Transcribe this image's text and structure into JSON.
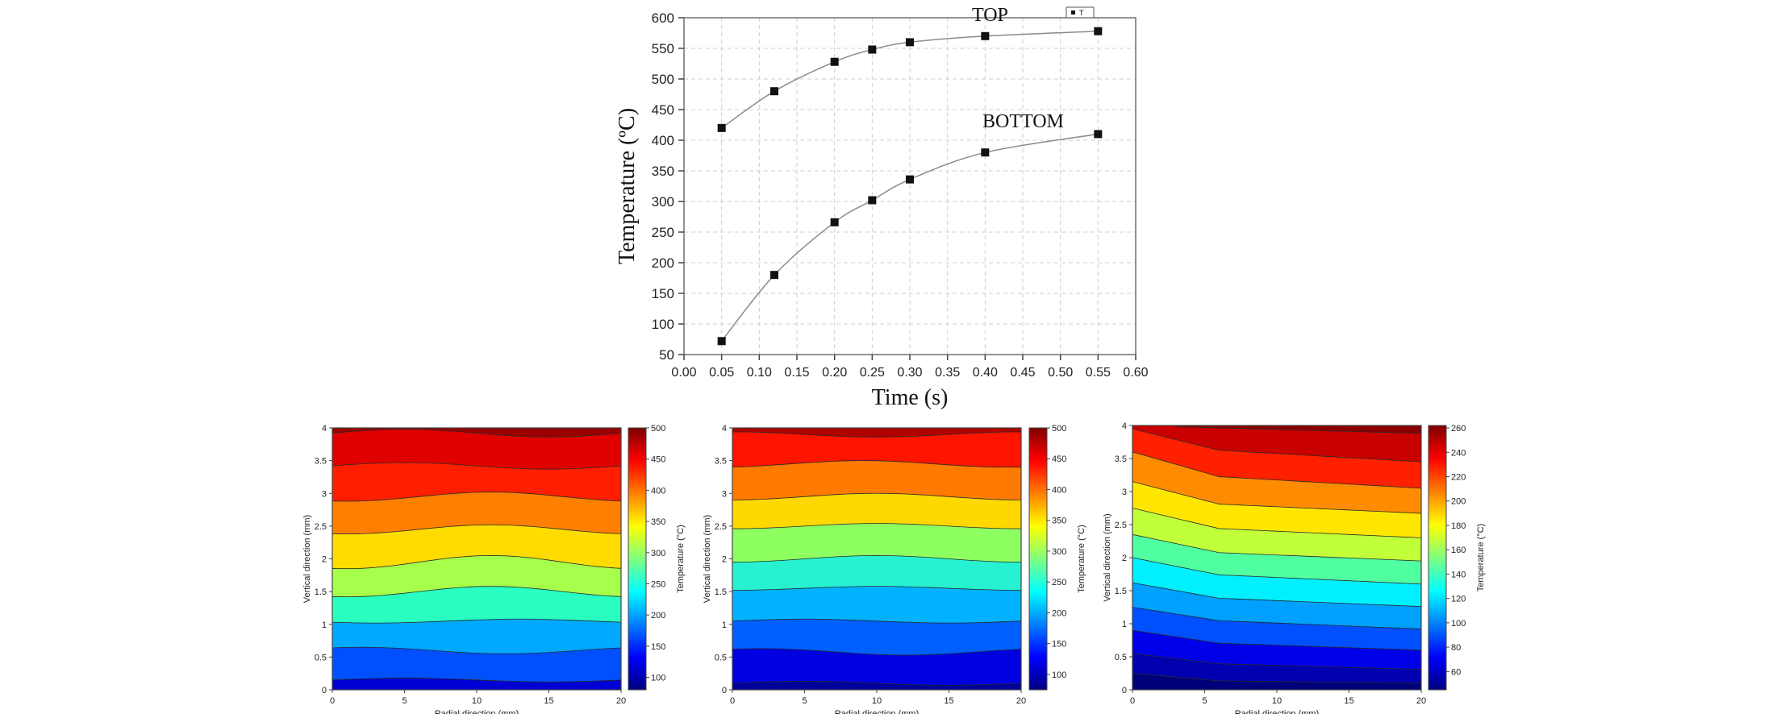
{
  "chart_data": [
    {
      "type": "line",
      "xlabel": "Time (s)",
      "ylabel": "Temperature (ºC)",
      "xlim": [
        0.0,
        0.6
      ],
      "ylim": [
        50,
        600
      ],
      "xticks": [
        "0.00",
        "0.05",
        "0.10",
        "0.15",
        "0.20",
        "0.25",
        "0.30",
        "0.35",
        "0.40",
        "0.45",
        "0.50",
        "0.55",
        "0.60"
      ],
      "yticks": [
        "50",
        "100",
        "150",
        "200",
        "250",
        "300",
        "350",
        "400",
        "450",
        "500",
        "550",
        "600"
      ],
      "grid": true,
      "legend": {
        "position": "top-right",
        "label": "T"
      },
      "series": [
        {
          "name": "TOP",
          "x": [
            0.05,
            0.12,
            0.2,
            0.25,
            0.3,
            0.4,
            0.55
          ],
          "y": [
            420,
            480,
            528,
            548,
            560,
            570,
            578
          ]
        },
        {
          "name": "BOTTOM",
          "x": [
            0.05,
            0.12,
            0.2,
            0.25,
            0.3,
            0.4,
            0.55
          ],
          "y": [
            72,
            180,
            266,
            302,
            336,
            380,
            410
          ]
        }
      ]
    },
    {
      "type": "heatmap",
      "xlabel": "Radial direction (mm)",
      "ylabel": "Vertical direction (mm)",
      "colorbar_label": "Temperature (°C)",
      "xlim": [
        0,
        20
      ],
      "ylim": [
        0,
        4
      ],
      "xticks": [
        "0",
        "5",
        "10",
        "15",
        "20"
      ],
      "yticks": [
        "0",
        "0.5",
        "1",
        "1.5",
        "2",
        "2.5",
        "3",
        "3.5",
        "4"
      ],
      "colorbar_range": [
        80,
        500
      ],
      "colorbar_ticks": [
        "100",
        "150",
        "200",
        "250",
        "300",
        "350",
        "400",
        "450",
        "500"
      ]
    },
    {
      "type": "heatmap",
      "xlabel": "Radial direction (mm)",
      "ylabel": "Vertical direction (mm)",
      "colorbar_label": "Temperature (°C)",
      "xlim": [
        0,
        20
      ],
      "ylim": [
        0,
        4
      ],
      "xticks": [
        "0",
        "5",
        "10",
        "15",
        "20"
      ],
      "yticks": [
        "0",
        "0.5",
        "1",
        "1.5",
        "2",
        "2.5",
        "3",
        "3.5",
        "4"
      ],
      "colorbar_range": [
        75,
        500
      ],
      "colorbar_ticks": [
        "100",
        "150",
        "200",
        "250",
        "300",
        "350",
        "400",
        "450",
        "500"
      ]
    },
    {
      "type": "heatmap",
      "xlabel": "Radial direction (mm)",
      "ylabel": "Vertical direction (mm)",
      "colorbar_label": "Temperature (°C)",
      "xlim": [
        0,
        20
      ],
      "ylim": [
        0,
        4
      ],
      "xticks": [
        "0",
        "5",
        "10",
        "15",
        "20"
      ],
      "yticks": [
        "0",
        "0.5",
        "1",
        "1.5",
        "2",
        "2.5",
        "3",
        "3.5",
        "4"
      ],
      "colorbar_range": [
        45,
        262
      ],
      "colorbar_ticks": [
        "60",
        "80",
        "100",
        "120",
        "140",
        "160",
        "180",
        "200",
        "220",
        "240",
        "260"
      ]
    }
  ]
}
